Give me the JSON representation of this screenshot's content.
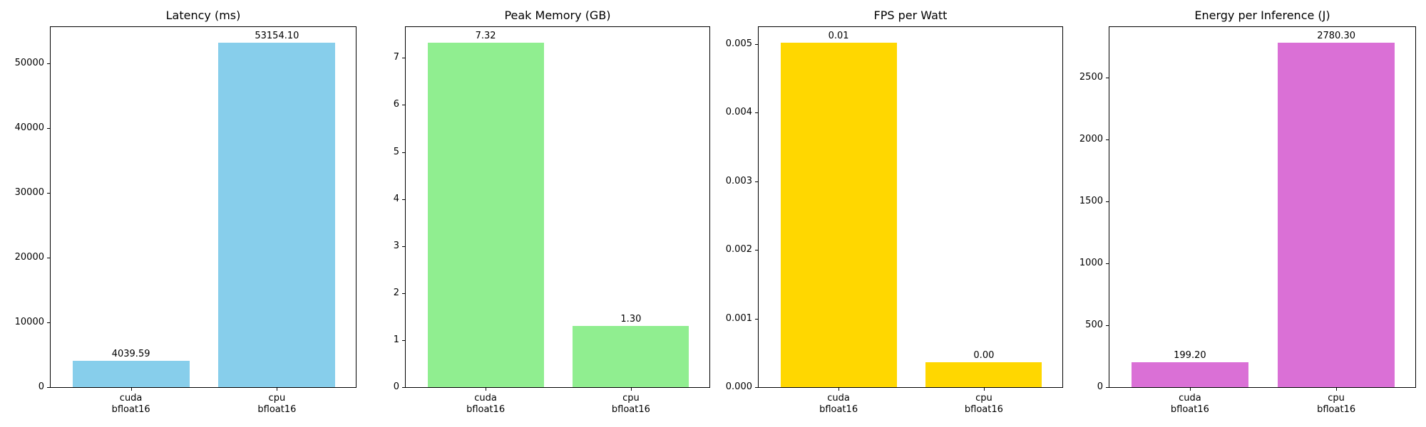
{
  "chart_data": [
    {
      "type": "bar",
      "title": "Latency (ms)",
      "categories": [
        "cuda\nbfloat16",
        "cpu\nbfloat16"
      ],
      "category_lines": [
        [
          "cuda",
          "bfloat16"
        ],
        [
          "cpu",
          "bfloat16"
        ]
      ],
      "values": [
        4039.59,
        53154.1
      ],
      "value_labels": [
        "4039.59",
        "53154.10"
      ],
      "color": "#87CEEB",
      "xlabel": "",
      "ylabel": "",
      "ylim": [
        0,
        55812
      ],
      "yticks": [
        0,
        10000,
        20000,
        30000,
        40000,
        50000
      ],
      "ytick_labels": [
        "0",
        "10000",
        "20000",
        "30000",
        "40000",
        "50000"
      ],
      "grid": false
    },
    {
      "type": "bar",
      "title": "Peak Memory (GB)",
      "categories": [
        "cuda\nbfloat16",
        "cpu\nbfloat16"
      ],
      "category_lines": [
        [
          "cuda",
          "bfloat16"
        ],
        [
          "cpu",
          "bfloat16"
        ]
      ],
      "values": [
        7.32,
        1.3
      ],
      "value_labels": [
        "7.32",
        "1.30"
      ],
      "color": "#90EE90",
      "xlabel": "",
      "ylabel": "",
      "ylim": [
        0,
        7.686
      ],
      "yticks": [
        0,
        1,
        2,
        3,
        4,
        5,
        6,
        7
      ],
      "ytick_labels": [
        "0",
        "1",
        "2",
        "3",
        "4",
        "5",
        "6",
        "7"
      ],
      "grid": false
    },
    {
      "type": "bar",
      "title": "FPS per Watt",
      "categories": [
        "cuda\nbfloat16",
        "cpu\nbfloat16"
      ],
      "category_lines": [
        [
          "cuda",
          "bfloat16"
        ],
        [
          "cpu",
          "bfloat16"
        ]
      ],
      "values": [
        0.00502,
        0.00036
      ],
      "value_labels": [
        "0.01",
        "0.00"
      ],
      "color": "#FFD700",
      "xlabel": "",
      "ylabel": "",
      "ylim": [
        0,
        0.00527
      ],
      "yticks": [
        0,
        0.001,
        0.002,
        0.003,
        0.004,
        0.005
      ],
      "ytick_labels": [
        "0.000",
        "0.001",
        "0.002",
        "0.003",
        "0.004",
        "0.005"
      ],
      "grid": false
    },
    {
      "type": "bar",
      "title": "Energy per Inference (J)",
      "categories": [
        "cuda\nbfloat16",
        "cpu\nbfloat16"
      ],
      "category_lines": [
        [
          "cuda",
          "bfloat16"
        ],
        [
          "cpu",
          "bfloat16"
        ]
      ],
      "values": [
        199.2,
        2780.3
      ],
      "value_labels": [
        "199.20",
        "2780.30"
      ],
      "color": "#DA70D6",
      "xlabel": "",
      "ylabel": "",
      "ylim": [
        0,
        2919.3
      ],
      "yticks": [
        0,
        500,
        1000,
        1500,
        2000,
        2500
      ],
      "ytick_labels": [
        "0",
        "500",
        "1000",
        "1500",
        "2000",
        "2500"
      ],
      "grid": false
    }
  ]
}
